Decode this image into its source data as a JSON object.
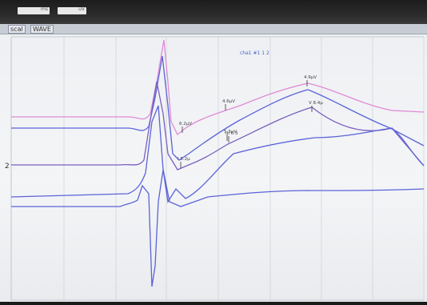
{
  "topbar": {
    "box1_label": "ms",
    "box2_label": "uV"
  },
  "menu": {
    "item1": "scal",
    "item2": "WAVE"
  },
  "trace_label": "cha1 #1 1 2",
  "colors": {
    "pink": "#e08ad6",
    "blue": "#5b63d8",
    "purple": "#7a5fc0",
    "grid": "#c9ccd2"
  },
  "markers": [
    {
      "label": "4.9µV",
      "trace": 0
    },
    {
      "label": "4.6µV",
      "trace": 0
    },
    {
      "label": "6.2µV",
      "trace": 1
    },
    {
      "label": "5.3µV",
      "trace": 1
    },
    {
      "label": "V 8.4µ",
      "trace": 2
    },
    {
      "label": "III 6.3",
      "trace": 2
    },
    {
      "label": "I 5.2µ",
      "trace": 3
    }
  ],
  "side_marker": "2"
}
